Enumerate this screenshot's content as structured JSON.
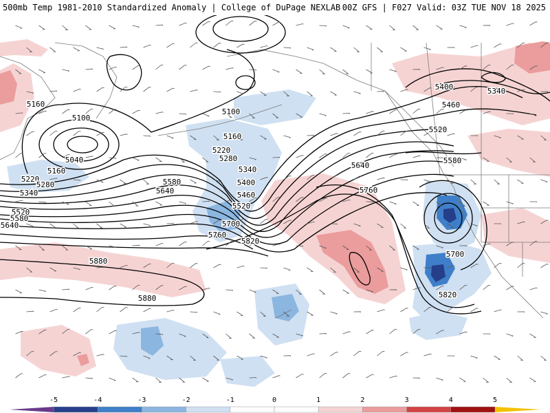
{
  "header": {
    "left": "500mb Temp 1981-2010 Standardized Anomaly | College of DuPage NEXLAB",
    "right": "00Z GFS | F027 Valid: 03Z TUE NOV 18 2025"
  },
  "colors": {
    "neg5": "#6a3a8a",
    "neg4": "#263f8a",
    "neg3": "#3f7fc9",
    "neg2": "#8bb6e0",
    "neg1": "#cfe0f2",
    "pos1": "#f6d3d3",
    "pos2": "#eb9c9c",
    "pos3": "#d24343",
    "pos4": "#a01010",
    "pos5": "#f2c200",
    "contour": "#000000",
    "border": "#7a7a7a"
  },
  "colorbar": {
    "ticks": [
      "-5",
      "-4",
      "-3",
      "-2",
      "-1",
      "0",
      "1",
      "2",
      "3",
      "4",
      "5"
    ]
  },
  "contour_labels": [
    {
      "id": "c1",
      "text": "5160"
    },
    {
      "id": "c2",
      "text": "5100"
    },
    {
      "id": "c3",
      "text": "5040"
    },
    {
      "id": "c4",
      "text": "5160"
    },
    {
      "id": "c5",
      "text": "5220"
    },
    {
      "id": "c6",
      "text": "5280"
    },
    {
      "id": "c7",
      "text": "5340"
    },
    {
      "id": "c8",
      "text": "5520"
    },
    {
      "id": "c9",
      "text": "5580"
    },
    {
      "id": "c10",
      "text": "5640"
    },
    {
      "id": "c11",
      "text": "5100"
    },
    {
      "id": "c12",
      "text": "5160"
    },
    {
      "id": "c13",
      "text": "5220"
    },
    {
      "id": "c14",
      "text": "5280"
    },
    {
      "id": "c15",
      "text": "5340"
    },
    {
      "id": "c16",
      "text": "5400"
    },
    {
      "id": "c17",
      "text": "5460"
    },
    {
      "id": "c18",
      "text": "5520"
    },
    {
      "id": "c19",
      "text": "5580"
    },
    {
      "id": "c20",
      "text": "5640"
    },
    {
      "id": "c21",
      "text": "5700"
    },
    {
      "id": "c22",
      "text": "5760"
    },
    {
      "id": "c23",
      "text": "5820"
    },
    {
      "id": "c24",
      "text": "5880"
    },
    {
      "id": "c25",
      "text": "5880"
    },
    {
      "id": "c26",
      "text": "5400"
    },
    {
      "id": "c27",
      "text": "5340"
    },
    {
      "id": "c28",
      "text": "5460"
    },
    {
      "id": "c29",
      "text": "5520"
    },
    {
      "id": "c30",
      "text": "5580"
    },
    {
      "id": "c31",
      "text": "5640"
    },
    {
      "id": "c32",
      "text": "5760"
    },
    {
      "id": "c33",
      "text": "5700"
    },
    {
      "id": "c34",
      "text": "5820"
    }
  ]
}
